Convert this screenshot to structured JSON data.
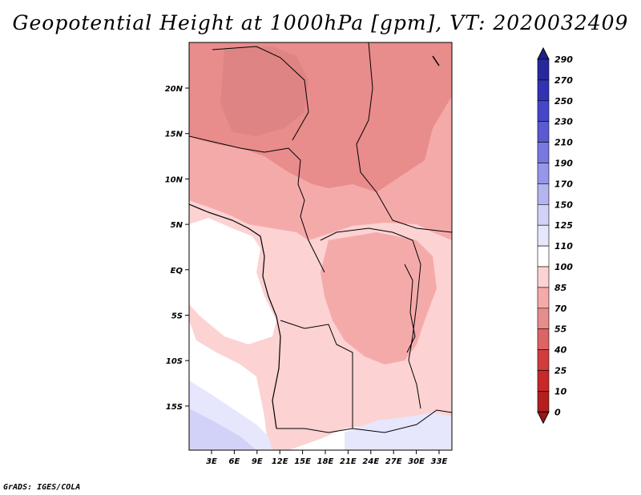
{
  "title": "Geopotential Height at 1000hPa [gpm], VT: 2020032409",
  "footer": "GrADS: IGES/COLA",
  "map": {
    "lat_labels": [
      "20N",
      "15N",
      "10N",
      "5N",
      "EQ",
      "5S",
      "10S",
      "15S"
    ],
    "lon_labels": [
      "3E",
      "6E",
      "9E",
      "12E",
      "15E",
      "18E",
      "21E",
      "24E",
      "27E",
      "30E",
      "33E"
    ]
  },
  "colorbar": {
    "labels": [
      "290",
      "270",
      "250",
      "230",
      "210",
      "190",
      "170",
      "150",
      "125",
      "110",
      "100",
      "85",
      "70",
      "55",
      "40",
      "25",
      "10",
      "0"
    ],
    "colors": [
      "#1e1e8c",
      "#28289e",
      "#3232b4",
      "#4646c8",
      "#5a5ad2",
      "#7878e0",
      "#9696ea",
      "#b4b4f0",
      "#d2d2f8",
      "#e6e6fc",
      "#ffffff",
      "#fcd2d2",
      "#f5aaaa",
      "#e88c8c",
      "#dc6464",
      "#d23c3c",
      "#c82828",
      "#b41e1e",
      "#a01414"
    ]
  }
}
